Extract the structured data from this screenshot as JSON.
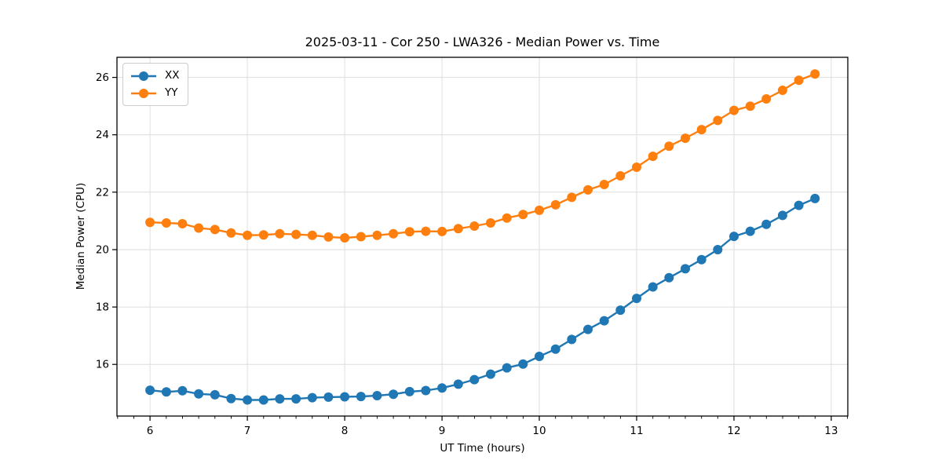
{
  "title": "2025-03-11 - Cor 250 - LWA326 - Median Power vs. Time",
  "colors": {
    "series_xx": "#1f77b4",
    "series_yy": "#ff7f0e",
    "grid": "#dedede",
    "text": "#000000",
    "legend_border": "#cccccc"
  },
  "chart_data": {
    "type": "line",
    "title": "2025-03-11 - Cor 250 - LWA326 - Median Power vs. Time",
    "xlabel": "UT Time (hours)",
    "ylabel": "Median Power (CPU)",
    "xlim": [
      5.66,
      13.17
    ],
    "ylim": [
      14.2,
      26.7
    ],
    "x_ticks": [
      6,
      7,
      8,
      9,
      10,
      11,
      12,
      13
    ],
    "y_ticks": [
      16,
      18,
      20,
      22,
      24,
      26
    ],
    "x_minor_tick_interval": 0.16667,
    "grid": true,
    "legend_position": "upper-left",
    "marker": "circle",
    "x": [
      6.0,
      6.167,
      6.333,
      6.5,
      6.667,
      6.833,
      7.0,
      7.167,
      7.333,
      7.5,
      7.667,
      7.833,
      8.0,
      8.167,
      8.333,
      8.5,
      8.667,
      8.833,
      9.0,
      9.167,
      9.333,
      9.5,
      9.667,
      9.833,
      10.0,
      10.167,
      10.333,
      10.5,
      10.667,
      10.833,
      11.0,
      11.167,
      11.333,
      11.5,
      11.667,
      11.833,
      12.0,
      12.167,
      12.333,
      12.5,
      12.667,
      12.833
    ],
    "series": [
      {
        "name": "XX",
        "color": "#1f77b4",
        "values": [
          15.1,
          15.04,
          15.08,
          14.97,
          14.94,
          14.81,
          14.76,
          14.76,
          14.8,
          14.8,
          14.84,
          14.86,
          14.87,
          14.88,
          14.91,
          14.96,
          15.05,
          15.09,
          15.18,
          15.31,
          15.47,
          15.66,
          15.88,
          16.01,
          16.28,
          16.53,
          16.87,
          17.22,
          17.52,
          17.89,
          18.3,
          18.7,
          19.02,
          19.33,
          19.65,
          20.0,
          20.46,
          20.64,
          20.88,
          21.19,
          21.54,
          21.78
        ]
      },
      {
        "name": "YY",
        "color": "#ff7f0e",
        "values": [
          20.95,
          20.93,
          20.9,
          20.75,
          20.7,
          20.58,
          20.5,
          20.51,
          20.55,
          20.53,
          20.5,
          20.44,
          20.41,
          20.45,
          20.5,
          20.55,
          20.62,
          20.64,
          20.63,
          20.73,
          20.82,
          20.93,
          21.1,
          21.22,
          21.37,
          21.56,
          21.82,
          22.08,
          22.27,
          22.57,
          22.87,
          23.25,
          23.6,
          23.88,
          24.18,
          24.5,
          24.85,
          25.0,
          25.25,
          25.55,
          25.9,
          26.12
        ]
      }
    ]
  }
}
